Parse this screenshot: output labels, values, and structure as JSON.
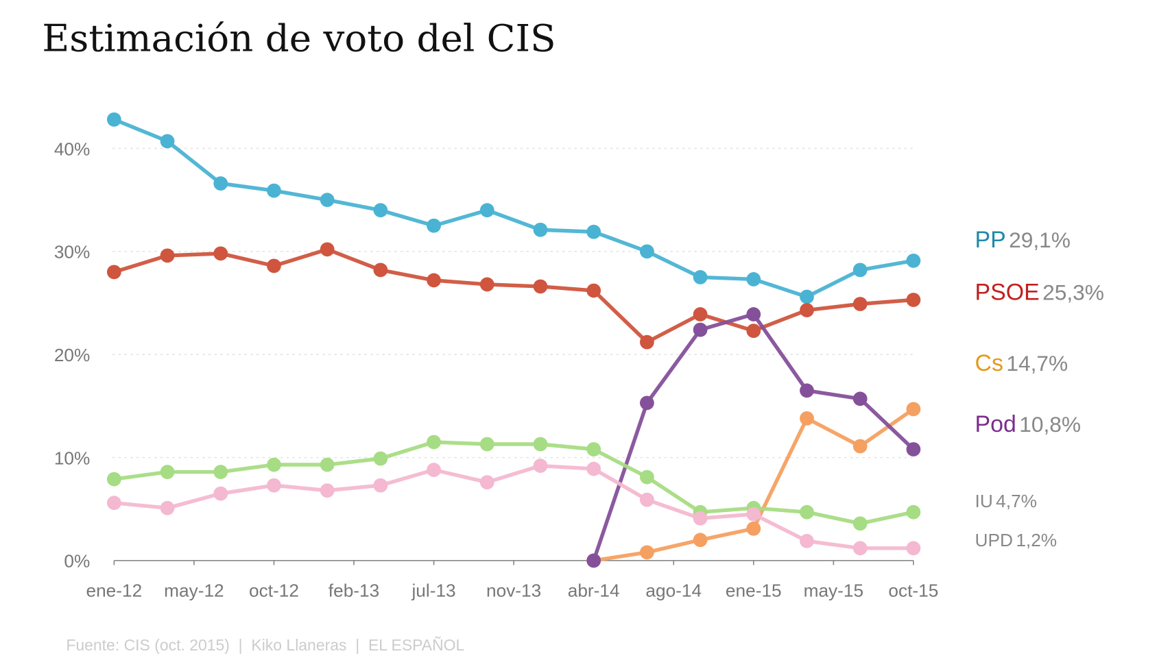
{
  "chart_data": {
    "type": "line",
    "title": "Estimación de voto del CIS",
    "source": "Fuente: CIS (oct. 2015)  |  Kiko Llaneras  |  EL ESPAÑOL",
    "x": [
      "2012-01",
      "2012-04",
      "2012-07",
      "2012-10",
      "2013-01",
      "2013-04",
      "2013-07",
      "2013-10",
      "2014-01",
      "2014-04",
      "2014-07",
      "2014-10",
      "2015-01",
      "2015-04",
      "2015-07",
      "2015-10"
    ],
    "x_tick_labels": [
      "ene-12",
      "may-12",
      "oct-12",
      "feb-13",
      "jul-13",
      "nov-13",
      "abr-14",
      "ago-14",
      "ene-15",
      "may-15",
      "oct-15"
    ],
    "y_ticks": [
      0,
      10,
      20,
      30,
      40
    ],
    "y_tick_labels": [
      "0%",
      "10%",
      "20%",
      "30%",
      "40%"
    ],
    "ylim": [
      0,
      43
    ],
    "grid": "horizontal dotted",
    "legend": "right, direct labels at line ends",
    "series": [
      {
        "name": "PP",
        "end_label": "29,1%",
        "color": "#4ab3d3",
        "label_color": "#1f8aa8",
        "values": [
          42.8,
          40.7,
          36.6,
          35.9,
          35.0,
          34.0,
          32.5,
          34.0,
          32.1,
          31.9,
          30.0,
          27.5,
          27.3,
          25.6,
          28.2,
          29.1
        ]
      },
      {
        "name": "PSOE",
        "end_label": "25,3%",
        "color": "#d0553e",
        "label_color": "#c0201f",
        "values": [
          28.0,
          29.6,
          29.8,
          28.6,
          30.2,
          28.2,
          27.2,
          26.8,
          26.6,
          26.2,
          21.2,
          23.9,
          22.3,
          24.3,
          24.9,
          25.3
        ]
      },
      {
        "name": "Cs",
        "end_label": "14,7%",
        "color": "#f5a061",
        "label_color": "#e39a1c",
        "values": [
          null,
          null,
          null,
          null,
          null,
          null,
          null,
          null,
          null,
          0,
          0.8,
          2.0,
          3.1,
          13.8,
          11.1,
          14.7
        ]
      },
      {
        "name": "Pod",
        "end_label": "10,8%",
        "color": "#85509a",
        "label_color": "#7b2e8e",
        "values": [
          null,
          null,
          null,
          null,
          null,
          null,
          null,
          null,
          null,
          0,
          15.3,
          22.4,
          23.9,
          16.5,
          15.7,
          10.8
        ]
      },
      {
        "name": "IU",
        "end_label": "4,7%",
        "color": "#a6dc83",
        "label_color": "#888888",
        "values": [
          7.9,
          8.6,
          8.6,
          9.3,
          9.3,
          9.9,
          11.5,
          11.3,
          11.3,
          10.8,
          8.1,
          4.7,
          5.1,
          4.7,
          3.6,
          4.7
        ]
      },
      {
        "name": "UPD",
        "end_label": "1,2%",
        "color": "#f4b8d0",
        "label_color": "#888888",
        "values": [
          5.6,
          5.1,
          6.5,
          7.3,
          6.8,
          7.3,
          8.8,
          7.6,
          9.2,
          8.9,
          5.9,
          4.1,
          4.5,
          1.9,
          1.2,
          1.2
        ]
      }
    ]
  }
}
